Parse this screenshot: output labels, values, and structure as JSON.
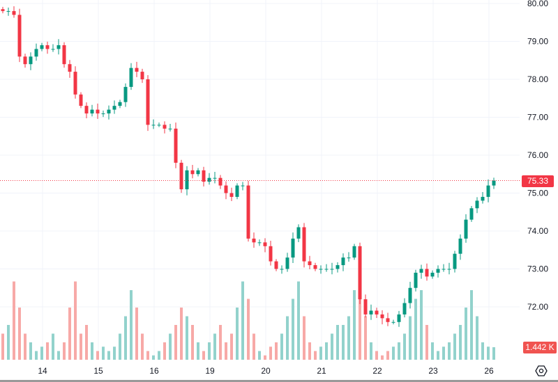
{
  "chart_data": {
    "type": "candlestick",
    "y_ticks": [
      "80.00",
      "79.00",
      "78.00",
      "77.00",
      "76.00",
      "75.00",
      "74.00",
      "73.00",
      "72.00"
    ],
    "y_tick_values": [
      80,
      79,
      78,
      77,
      76,
      75,
      74,
      73,
      72
    ],
    "ylim": [
      71.3,
      80.1
    ],
    "x_ticks": [
      "14",
      "15",
      "16",
      "19",
      "20",
      "21",
      "22",
      "23",
      "26"
    ],
    "x_tick_index": [
      7,
      17,
      27,
      37,
      47,
      57,
      67,
      77,
      87
    ],
    "closes": [
      79.8,
      79.8,
      79.7,
      78.6,
      78.4,
      78.6,
      78.8,
      78.9,
      78.8,
      78.8,
      78.9,
      78.4,
      78.2,
      77.6,
      77.3,
      77.1,
      77.2,
      77.1,
      77.1,
      77.2,
      77.3,
      77.4,
      77.8,
      78.3,
      78.2,
      78.0,
      76.8,
      76.8,
      76.8,
      76.7,
      76.7,
      75.8,
      75.1,
      75.6,
      75.5,
      75.6,
      75.3,
      75.4,
      75.4,
      75.2,
      75.0,
      74.9,
      75.2,
      75.2,
      73.8,
      73.7,
      73.7,
      73.6,
      73.2,
      73.0,
      73.0,
      73.3,
      73.8,
      74.1,
      73.2,
      73.1,
      73.0,
      73.0,
      73.0,
      73.0,
      73.1,
      73.3,
      73.3,
      73.6,
      72.2,
      71.8,
      71.9,
      71.8,
      71.7,
      71.6,
      71.6,
      71.8,
      72.1,
      72.5,
      72.9,
      73.0,
      72.8,
      72.9,
      73.0,
      73.0,
      73.0,
      73.4,
      73.8,
      74.3,
      74.6,
      74.8,
      74.9,
      75.2,
      75.33
    ],
    "volumes": [
      3,
      4,
      9,
      6,
      3,
      2,
      1,
      1.5,
      2,
      3,
      1,
      2,
      6,
      9,
      3,
      4,
      2,
      1,
      1.5,
      1,
      1.5,
      3,
      5,
      8,
      6,
      3,
      1,
      0.5,
      1,
      2,
      3,
      4,
      6,
      5,
      4,
      2,
      1,
      2,
      3,
      4,
      2,
      3,
      6,
      9,
      7,
      3,
      1,
      0.5,
      1.5,
      2,
      3,
      5,
      7,
      9,
      5,
      2,
      1,
      1.5,
      2,
      3,
      4,
      4,
      5,
      8,
      9,
      5,
      2,
      1,
      0.5,
      1,
      1.5,
      2,
      3,
      5,
      7,
      8,
      4,
      2,
      1,
      1.5,
      2,
      3,
      4,
      6,
      8,
      5,
      2,
      1.5,
      1.442
    ],
    "last_price": "75.33",
    "last_volume": "1.442 K",
    "colors": {
      "up": "#089981",
      "down": "#f23645",
      "vol_up": "#92d2cc",
      "vol_down": "#f7a9a7",
      "grid": "#f0f3fa",
      "last_line": "#f23645"
    }
  }
}
